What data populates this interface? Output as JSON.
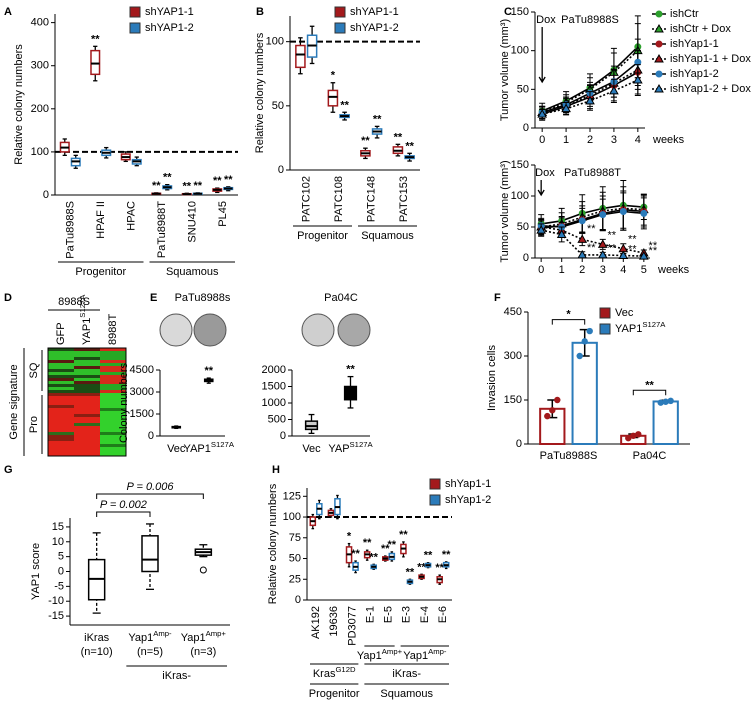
{
  "chart_data": [
    {
      "panel": "A",
      "type": "box",
      "ylabel": "Relative colony numbers",
      "categories": [
        "PaTu8988S",
        "HPAF II",
        "HPAC",
        "PaTu8988T",
        "SNU410",
        "PL45"
      ],
      "ylim": [
        0,
        420
      ],
      "yticks": [
        0,
        100,
        200,
        300,
        400
      ],
      "reference_line": 100,
      "series": [
        {
          "name": "shYAP1-1",
          "color": "#a3191c",
          "min": [
            92,
            265,
            78,
            1,
            1,
            6
          ],
          "q1": [
            100,
            280,
            82,
            2,
            1,
            9
          ],
          "values": [
            110,
            305,
            88,
            3,
            2,
            12
          ],
          "q3": [
            122,
            335,
            95,
            4,
            3,
            14
          ],
          "max": [
            130,
            345,
            100,
            5,
            4,
            16
          ],
          "stars": [
            null,
            "**",
            null,
            "**",
            "**",
            "**"
          ]
        },
        {
          "name": "shYAP1-2",
          "color": "#2b7bba",
          "min": [
            62,
            86,
            68,
            12,
            1,
            10
          ],
          "q1": [
            68,
            92,
            72,
            15,
            2,
            13
          ],
          "values": [
            78,
            98,
            78,
            18,
            3,
            15
          ],
          "q3": [
            85,
            104,
            82,
            21,
            4,
            17
          ],
          "max": [
            92,
            110,
            88,
            24,
            5,
            19
          ],
          "stars": [
            null,
            null,
            null,
            "**",
            "**",
            "**"
          ]
        }
      ],
      "groups": [
        {
          "label": "Progenitor",
          "from": 0,
          "to": 2
        },
        {
          "label": "Squamous",
          "from": 3,
          "to": 5
        }
      ]
    },
    {
      "panel": "B",
      "type": "box",
      "ylabel": "Relative colony numbers",
      "categories": [
        "PATC102",
        "PATC108",
        "PATC148",
        "PATC153"
      ],
      "ylim": [
        0,
        120
      ],
      "yticks": [
        0,
        50,
        100
      ],
      "reference_line": 100,
      "series": [
        {
          "name": "shYAP1-1",
          "color": "#a3191c",
          "min": [
            75,
            45,
            9,
            11
          ],
          "q1": [
            80,
            50,
            11,
            13
          ],
          "values": [
            90,
            57,
            13,
            15
          ],
          "q3": [
            97,
            62,
            15,
            18
          ],
          "max": [
            103,
            68,
            17,
            20
          ],
          "stars": [
            null,
            "*",
            "**",
            "**"
          ]
        },
        {
          "name": "shYAP1-2",
          "color": "#2b7bba",
          "min": [
            83,
            39,
            25,
            7
          ],
          "q1": [
            88,
            41,
            28,
            9
          ],
          "values": [
            97,
            42,
            30,
            10
          ],
          "q3": [
            105,
            43,
            32,
            11
          ],
          "max": [
            112,
            45,
            34,
            13
          ],
          "stars": [
            null,
            "**",
            "**",
            "**"
          ]
        }
      ],
      "groups": [
        {
          "label": "Progenitor",
          "from": 0,
          "to": 1
        },
        {
          "label": "Squamous",
          "from": 2,
          "to": 3
        }
      ]
    },
    {
      "panel": "C",
      "type": "line",
      "title": "PaTu8988S",
      "annotation": "Dox",
      "xlabel": "weeks",
      "ylabel": "Tumor volume (mm³)",
      "x": [
        0,
        1,
        2,
        3,
        4
      ],
      "xlim": [
        -0.3,
        4.3
      ],
      "xticks": [
        0,
        1,
        2,
        3,
        4
      ],
      "ylim": [
        0,
        150
      ],
      "yticks": [
        0,
        50,
        100,
        150
      ],
      "series": [
        {
          "name": "ishCtr",
          "color": "#2ca02c",
          "line_style": "solid",
          "marker": "circle",
          "values": [
            22,
            35,
            52,
            75,
            105
          ],
          "errors": [
            10,
            12,
            18,
            28,
            40
          ]
        },
        {
          "name": "ishCtr + Dox",
          "color": "#2ca02c",
          "line_style": "dotted",
          "marker": "triangle",
          "values": [
            20,
            33,
            50,
            72,
            100
          ],
          "errors": [
            8,
            10,
            15,
            25,
            35
          ]
        },
        {
          "name": "ishYap1-1",
          "color": "#a3191c",
          "line_style": "solid",
          "marker": "circle",
          "values": [
            18,
            28,
            40,
            55,
            72
          ],
          "errors": [
            8,
            10,
            15,
            20,
            28
          ]
        },
        {
          "name": "ishYap1-1 + Dox",
          "color": "#a3191c",
          "line_style": "dotted",
          "marker": "triangle",
          "values": [
            20,
            30,
            42,
            58,
            75
          ],
          "errors": [
            8,
            10,
            14,
            18,
            25
          ]
        },
        {
          "name": "ishYap1-2",
          "color": "#2b7bba",
          "line_style": "solid",
          "marker": "circle",
          "values": [
            20,
            30,
            45,
            60,
            85
          ],
          "errors": [
            8,
            10,
            14,
            20,
            30
          ]
        },
        {
          "name": "ishYap1-2 + Dox",
          "color": "#2b7bba",
          "line_style": "dotted",
          "marker": "triangle",
          "values": [
            18,
            25,
            35,
            48,
            62
          ],
          "errors": [
            6,
            8,
            12,
            15,
            20
          ]
        }
      ]
    },
    {
      "type": "line",
      "title": "PaTu8988T",
      "annotation": "Dox",
      "xlabel": "weeks",
      "ylabel": "Tumor volume (mm³)",
      "x": [
        0,
        1,
        2,
        3,
        4,
        5
      ],
      "xlim": [
        -0.3,
        5.3
      ],
      "xticks": [
        0,
        1,
        2,
        3,
        4,
        5
      ],
      "ylim": [
        0,
        150
      ],
      "yticks": [
        0,
        50,
        100,
        150
      ],
      "series": [
        {
          "color": "#2ca02c",
          "line_style": "solid",
          "marker": "circle",
          "values": [
            55,
            60,
            72,
            80,
            85,
            82
          ],
          "errors": [
            15,
            20,
            30,
            35,
            40,
            20
          ]
        },
        {
          "color": "#2ca02c",
          "line_style": "dotted",
          "marker": "triangle",
          "values": [
            50,
            55,
            66,
            76,
            80,
            78
          ],
          "errors": [
            12,
            18,
            25,
            30,
            35,
            25
          ]
        },
        {
          "color": "#a3191c",
          "line_style": "solid",
          "marker": "circle",
          "values": [
            48,
            52,
            62,
            72,
            78,
            75
          ],
          "errors": [
            12,
            15,
            22,
            28,
            30,
            25
          ]
        },
        {
          "color": "#a3191c",
          "line_style": "dotted",
          "marker": "triangle",
          "values": [
            50,
            45,
            30,
            22,
            15,
            8
          ],
          "errors": [
            10,
            12,
            10,
            8,
            8,
            5
          ],
          "stars": [
            null,
            null,
            "**",
            "**",
            "**",
            "**"
          ]
        },
        {
          "color": "#2b7bba",
          "line_style": "solid",
          "marker": "circle",
          "values": [
            52,
            50,
            60,
            70,
            75,
            72
          ],
          "errors": [
            12,
            15,
            20,
            25,
            30,
            25
          ]
        },
        {
          "color": "#2b7bba",
          "line_style": "dotted",
          "marker": "triangle",
          "values": [
            45,
            38,
            5,
            5,
            4,
            3
          ],
          "errors": [
            10,
            12,
            5,
            4,
            3,
            2
          ],
          "stars": [
            null,
            null,
            "**",
            "**",
            "**",
            "**"
          ]
        }
      ]
    },
    {
      "panel": "D",
      "type": "heatmap",
      "header": "8988S",
      "columns": [
        {
          "label": "GFP"
        },
        {
          "label": "YAP1",
          "sup": "S127A"
        },
        {
          "label": "8988T"
        }
      ],
      "ylabel": "Gene signature",
      "row_groups": [
        "SQ",
        "Pro"
      ]
    },
    {
      "panel": "E",
      "type": "box",
      "title": "PaTu8988s",
      "ylabel": "Colony numbers",
      "categories": [
        "Vec",
        "YAP1"
      ],
      "category_sup": [
        null,
        "S127A"
      ],
      "ylim": [
        0,
        4500
      ],
      "yticks": [
        0,
        1500,
        3000,
        4500
      ],
      "series": [
        {
          "colors": [
            "#888888",
            "#000000"
          ],
          "min": [
            520,
            3600
          ],
          "q1": [
            560,
            3720
          ],
          "values": [
            600,
            3800
          ],
          "q3": [
            640,
            3870
          ],
          "max": [
            680,
            3950
          ],
          "stars": [
            null,
            "**"
          ]
        }
      ]
    },
    {
      "type": "box",
      "title": "Pa04C",
      "categories": [
        "Vec",
        "YAP"
      ],
      "category_sup": [
        null,
        "S127A"
      ],
      "ylim": [
        0,
        2000
      ],
      "yticks": [
        0,
        500,
        1000,
        1500,
        2000
      ],
      "series": [
        {
          "colors": [
            "#cccccc",
            "#000000"
          ],
          "min": [
            80,
            850
          ],
          "q1": [
            200,
            1100
          ],
          "values": [
            300,
            1300
          ],
          "q3": [
            450,
            1500
          ],
          "max": [
            650,
            1800
          ],
          "stars": [
            null,
            "**"
          ]
        }
      ]
    },
    {
      "panel": "F",
      "type": "bar",
      "ylabel": "Invasion cells",
      "categories": [
        "PaTu8988S",
        "Pa04C"
      ],
      "ylim": [
        0,
        450
      ],
      "yticks": [
        0,
        150,
        300,
        450
      ],
      "series": [
        {
          "name": "Vec",
          "color": "#a3191c",
          "values": [
            120,
            28
          ],
          "errors": [
            30,
            6
          ],
          "points": [
            [
              95,
              115,
              150
            ],
            [
              20,
              28,
              33
            ]
          ]
        },
        {
          "name": "YAP1",
          "sup": "S127A",
          "color": "#2b7bba",
          "values": [
            345,
            145
          ],
          "errors": [
            45,
            4
          ],
          "points": [
            [
              300,
              350,
              385
            ],
            [
              141,
              144,
              147
            ]
          ]
        }
      ],
      "significance": [
        "*",
        "**"
      ]
    },
    {
      "panel": "G",
      "type": "box",
      "ylabel": "YAP1 score",
      "whisker_dash": true,
      "categories": [
        "iKras",
        "Yap1",
        "Yap1"
      ],
      "category_sup": [
        null,
        "Amp-",
        "Amp+"
      ],
      "category_counts": [
        "(n=10)",
        "(n=5)",
        "(n=3)"
      ],
      "ylim": [
        -18,
        18
      ],
      "yticks": [
        -15,
        -10,
        -5,
        0,
        5,
        10,
        15
      ],
      "series": [
        {
          "color": "#000000",
          "min": [
            -14,
            -6,
            5
          ],
          "q1": [
            -9.5,
            0,
            5.5
          ],
          "values": [
            -2.5,
            4,
            6.5
          ],
          "q3": [
            4,
            12,
            7.5
          ],
          "max": [
            13,
            16,
            9
          ]
        }
      ],
      "outliers": [
        null,
        null,
        [
          0.5
        ]
      ],
      "comparisons": [
        {
          "label": "P = 0.002",
          "from": 0,
          "to": 1
        },
        {
          "label": "P = 0.006",
          "from": 0,
          "to": 2
        }
      ],
      "groups": [
        {
          "label": "iKras-",
          "from": 1,
          "to": 2
        }
      ]
    },
    {
      "panel": "H",
      "type": "box",
      "ylabel": "Relative colony numbers",
      "categories": [
        "AK192",
        "19636",
        "PD3077",
        "E-1",
        "E-5",
        "E-3",
        "E-4",
        "E-6"
      ],
      "ylim": [
        0,
        135
      ],
      "yticks": [
        0,
        25,
        50,
        75,
        100,
        125
      ],
      "reference_line": 100,
      "series": [
        {
          "name": "shYap1-1",
          "color": "#a3191c",
          "min": [
            86,
            100,
            40,
            48,
            47,
            52,
            25,
            19
          ],
          "q1": [
            90,
            102,
            45,
            51,
            48,
            56,
            26,
            21
          ],
          "values": [
            95,
            105,
            55,
            55,
            50,
            62,
            28,
            25
          ],
          "q3": [
            100,
            108,
            64,
            58,
            52,
            67,
            30,
            28
          ],
          "max": [
            103,
            110,
            68,
            60,
            53,
            70,
            31,
            30
          ],
          "stars": [
            null,
            null,
            "*",
            "**",
            "**",
            "**",
            "**",
            "**"
          ]
        },
        {
          "name": "shYap1-2",
          "color": "#2b7bba",
          "min": [
            98,
            98,
            33,
            37,
            47,
            19,
            39,
            38
          ],
          "q1": [
            103,
            103,
            36,
            38,
            49,
            20,
            40,
            40
          ],
          "values": [
            110,
            112,
            40,
            40,
            52,
            22,
            42,
            42
          ],
          "q3": [
            116,
            122,
            45,
            42,
            56,
            24,
            44,
            45
          ],
          "max": [
            120,
            126,
            47,
            43,
            58,
            25,
            45,
            46
          ],
          "stars": [
            null,
            null,
            "**",
            "**",
            "**",
            "**",
            "**",
            "**"
          ]
        }
      ],
      "groups": [
        {
          "label": "Yap1",
          "sup": "Amp+",
          "from": 3,
          "to": 4
        },
        {
          "label": "Yap1",
          "sup": "Amp-",
          "from": 5,
          "to": 7
        }
      ],
      "groups2": [
        {
          "label": "Kras",
          "sup": "G12D",
          "from": 0,
          "to": 2
        },
        {
          "label": "iKras-",
          "from": 3,
          "to": 7
        }
      ],
      "groups3": [
        {
          "label": "Progenitor",
          "from": 0,
          "to": 2
        },
        {
          "label": "Squamous",
          "from": 3,
          "to": 7
        }
      ]
    }
  ]
}
